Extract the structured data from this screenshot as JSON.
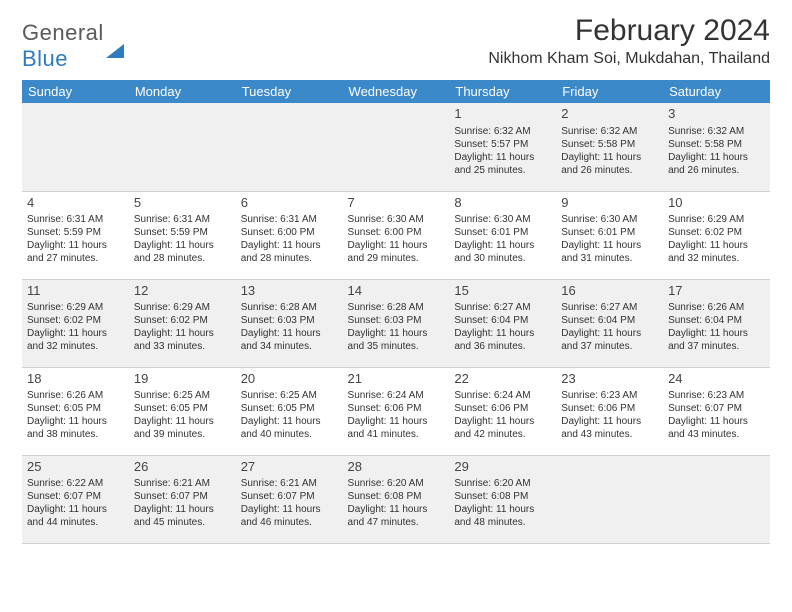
{
  "logo": {
    "top": "General",
    "bottom": "Blue"
  },
  "title": "February 2024",
  "location": "Nikhom Kham Soi, Mukdahan, Thailand",
  "dayHeaders": [
    "Sunday",
    "Monday",
    "Tuesday",
    "Wednesday",
    "Thursday",
    "Friday",
    "Saturday"
  ],
  "colors": {
    "headerBg": "#3b89c9",
    "altRowBg": "#f0f0f0",
    "accent": "#2f7bbf"
  },
  "weeks": [
    [
      null,
      null,
      null,
      null,
      {
        "n": "1",
        "sr": "Sunrise: 6:32 AM",
        "ss": "Sunset: 5:57 PM",
        "d1": "Daylight: 11 hours",
        "d2": "and 25 minutes."
      },
      {
        "n": "2",
        "sr": "Sunrise: 6:32 AM",
        "ss": "Sunset: 5:58 PM",
        "d1": "Daylight: 11 hours",
        "d2": "and 26 minutes."
      },
      {
        "n": "3",
        "sr": "Sunrise: 6:32 AM",
        "ss": "Sunset: 5:58 PM",
        "d1": "Daylight: 11 hours",
        "d2": "and 26 minutes."
      }
    ],
    [
      {
        "n": "4",
        "sr": "Sunrise: 6:31 AM",
        "ss": "Sunset: 5:59 PM",
        "d1": "Daylight: 11 hours",
        "d2": "and 27 minutes."
      },
      {
        "n": "5",
        "sr": "Sunrise: 6:31 AM",
        "ss": "Sunset: 5:59 PM",
        "d1": "Daylight: 11 hours",
        "d2": "and 28 minutes."
      },
      {
        "n": "6",
        "sr": "Sunrise: 6:31 AM",
        "ss": "Sunset: 6:00 PM",
        "d1": "Daylight: 11 hours",
        "d2": "and 28 minutes."
      },
      {
        "n": "7",
        "sr": "Sunrise: 6:30 AM",
        "ss": "Sunset: 6:00 PM",
        "d1": "Daylight: 11 hours",
        "d2": "and 29 minutes."
      },
      {
        "n": "8",
        "sr": "Sunrise: 6:30 AM",
        "ss": "Sunset: 6:01 PM",
        "d1": "Daylight: 11 hours",
        "d2": "and 30 minutes."
      },
      {
        "n": "9",
        "sr": "Sunrise: 6:30 AM",
        "ss": "Sunset: 6:01 PM",
        "d1": "Daylight: 11 hours",
        "d2": "and 31 minutes."
      },
      {
        "n": "10",
        "sr": "Sunrise: 6:29 AM",
        "ss": "Sunset: 6:02 PM",
        "d1": "Daylight: 11 hours",
        "d2": "and 32 minutes."
      }
    ],
    [
      {
        "n": "11",
        "sr": "Sunrise: 6:29 AM",
        "ss": "Sunset: 6:02 PM",
        "d1": "Daylight: 11 hours",
        "d2": "and 32 minutes."
      },
      {
        "n": "12",
        "sr": "Sunrise: 6:29 AM",
        "ss": "Sunset: 6:02 PM",
        "d1": "Daylight: 11 hours",
        "d2": "and 33 minutes."
      },
      {
        "n": "13",
        "sr": "Sunrise: 6:28 AM",
        "ss": "Sunset: 6:03 PM",
        "d1": "Daylight: 11 hours",
        "d2": "and 34 minutes."
      },
      {
        "n": "14",
        "sr": "Sunrise: 6:28 AM",
        "ss": "Sunset: 6:03 PM",
        "d1": "Daylight: 11 hours",
        "d2": "and 35 minutes."
      },
      {
        "n": "15",
        "sr": "Sunrise: 6:27 AM",
        "ss": "Sunset: 6:04 PM",
        "d1": "Daylight: 11 hours",
        "d2": "and 36 minutes."
      },
      {
        "n": "16",
        "sr": "Sunrise: 6:27 AM",
        "ss": "Sunset: 6:04 PM",
        "d1": "Daylight: 11 hours",
        "d2": "and 37 minutes."
      },
      {
        "n": "17",
        "sr": "Sunrise: 6:26 AM",
        "ss": "Sunset: 6:04 PM",
        "d1": "Daylight: 11 hours",
        "d2": "and 37 minutes."
      }
    ],
    [
      {
        "n": "18",
        "sr": "Sunrise: 6:26 AM",
        "ss": "Sunset: 6:05 PM",
        "d1": "Daylight: 11 hours",
        "d2": "and 38 minutes."
      },
      {
        "n": "19",
        "sr": "Sunrise: 6:25 AM",
        "ss": "Sunset: 6:05 PM",
        "d1": "Daylight: 11 hours",
        "d2": "and 39 minutes."
      },
      {
        "n": "20",
        "sr": "Sunrise: 6:25 AM",
        "ss": "Sunset: 6:05 PM",
        "d1": "Daylight: 11 hours",
        "d2": "and 40 minutes."
      },
      {
        "n": "21",
        "sr": "Sunrise: 6:24 AM",
        "ss": "Sunset: 6:06 PM",
        "d1": "Daylight: 11 hours",
        "d2": "and 41 minutes."
      },
      {
        "n": "22",
        "sr": "Sunrise: 6:24 AM",
        "ss": "Sunset: 6:06 PM",
        "d1": "Daylight: 11 hours",
        "d2": "and 42 minutes."
      },
      {
        "n": "23",
        "sr": "Sunrise: 6:23 AM",
        "ss": "Sunset: 6:06 PM",
        "d1": "Daylight: 11 hours",
        "d2": "and 43 minutes."
      },
      {
        "n": "24",
        "sr": "Sunrise: 6:23 AM",
        "ss": "Sunset: 6:07 PM",
        "d1": "Daylight: 11 hours",
        "d2": "and 43 minutes."
      }
    ],
    [
      {
        "n": "25",
        "sr": "Sunrise: 6:22 AM",
        "ss": "Sunset: 6:07 PM",
        "d1": "Daylight: 11 hours",
        "d2": "and 44 minutes."
      },
      {
        "n": "26",
        "sr": "Sunrise: 6:21 AM",
        "ss": "Sunset: 6:07 PM",
        "d1": "Daylight: 11 hours",
        "d2": "and 45 minutes."
      },
      {
        "n": "27",
        "sr": "Sunrise: 6:21 AM",
        "ss": "Sunset: 6:07 PM",
        "d1": "Daylight: 11 hours",
        "d2": "and 46 minutes."
      },
      {
        "n": "28",
        "sr": "Sunrise: 6:20 AM",
        "ss": "Sunset: 6:08 PM",
        "d1": "Daylight: 11 hours",
        "d2": "and 47 minutes."
      },
      {
        "n": "29",
        "sr": "Sunrise: 6:20 AM",
        "ss": "Sunset: 6:08 PM",
        "d1": "Daylight: 11 hours",
        "d2": "and 48 minutes."
      },
      null,
      null
    ]
  ]
}
